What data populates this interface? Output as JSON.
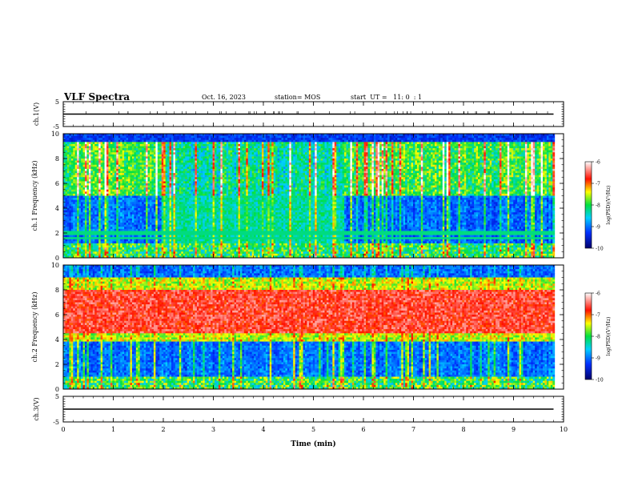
{
  "header": {
    "title": "VLF Spectra",
    "date": "Oct. 16, 2023",
    "station": "station= MOS",
    "start": "start  UT =   11: 0  : 1"
  },
  "chart_data": [
    {
      "type": "line",
      "panel": "ch1-voltage",
      "ylabel": "ch.1(V)",
      "yticks": [
        "5",
        "-5"
      ],
      "ylim": [
        -5,
        5
      ],
      "xlim": [
        0,
        10
      ],
      "series": [
        {
          "x": [
            0,
            9.8
          ],
          "y": [
            0,
            0
          ]
        }
      ]
    },
    {
      "type": "heatmap",
      "panel": "ch1-spectrogram",
      "ylabel": "ch.1 Frequency (kHz)",
      "xlim": [
        0,
        10
      ],
      "ylim": [
        0,
        10
      ],
      "yticks": [
        "0",
        "2",
        "4",
        "6",
        "8",
        "10"
      ],
      "colorbar": {
        "label": "log(PSD)(V²/Hz)",
        "ticks": [
          "-6",
          "-7",
          "-8",
          "-9",
          "-10"
        ],
        "range": [
          -10,
          -6
        ]
      },
      "features": {
        "top_band_khz": [
          8.6,
          10
        ],
        "quiet_interval_min": [
          2.0,
          5.6
        ],
        "min_log_psd": -10,
        "max_log_psd": -6
      }
    },
    {
      "type": "heatmap",
      "panel": "ch2-spectrogram",
      "ylabel": "ch.2 Frequency (kHz)",
      "xlim": [
        0,
        10
      ],
      "ylim": [
        0,
        10
      ],
      "yticks": [
        "0",
        "2",
        "4",
        "6",
        "8",
        "10"
      ],
      "colorbar": {
        "label": "log(PSD)(V²/Hz)",
        "ticks": [
          "-6",
          "-7",
          "-8",
          "-9",
          "-10"
        ],
        "range": [
          -10,
          -6
        ]
      },
      "features": {
        "peak_band_khz": [
          4.5,
          8
        ],
        "min_log_psd": -10,
        "max_log_psd": -6
      }
    },
    {
      "type": "line",
      "panel": "ch3-voltage",
      "ylabel": "ch.3(V)",
      "yticks": [
        "5",
        "-5"
      ],
      "ylim": [
        -5,
        5
      ],
      "xlim": [
        0,
        10
      ],
      "xlabel": "Time  (min)",
      "xticks": [
        "0",
        "1",
        "2",
        "3",
        "4",
        "5",
        "6",
        "7",
        "8",
        "9",
        "10"
      ],
      "series": [
        {
          "x": [
            0,
            9.8
          ],
          "y": [
            0,
            0
          ]
        }
      ]
    }
  ]
}
